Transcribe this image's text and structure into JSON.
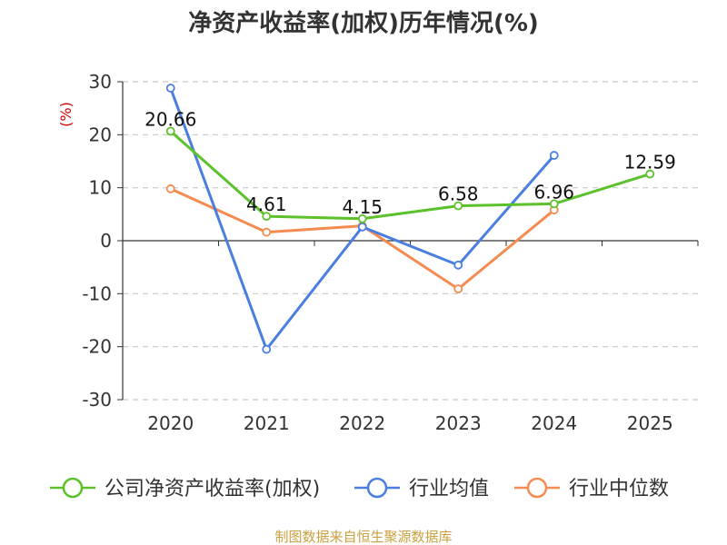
{
  "chart_data": {
    "type": "line",
    "title": "净资产收益率(加权)历年情况(%)",
    "ylabel": "(%)",
    "categories": [
      "2020",
      "2021",
      "2022",
      "2023",
      "2024",
      "2025"
    ],
    "ylim": [
      -30,
      30
    ],
    "yticks": [
      30,
      20,
      10,
      0,
      -10,
      -20,
      -30
    ],
    "grid": true,
    "legend_position": "bottom",
    "series": [
      {
        "name": "公司净资产收益率(加权)",
        "color": "#5cc12a",
        "values": [
          20.66,
          4.61,
          4.15,
          6.58,
          6.96,
          12.59
        ],
        "labels": [
          "20.66",
          "4.61",
          "4.15",
          "6.58",
          "6.96",
          "12.59"
        ]
      },
      {
        "name": "行业均值",
        "color": "#4a7fe0",
        "values": [
          28.8,
          -20.5,
          2.6,
          -4.6,
          16.1,
          null
        ]
      },
      {
        "name": "行业中位数",
        "color": "#f48c52",
        "values": [
          9.8,
          1.6,
          2.8,
          -9.1,
          5.8,
          null
        ]
      }
    ],
    "source": "制图数据来自恒生聚源数据库"
  }
}
